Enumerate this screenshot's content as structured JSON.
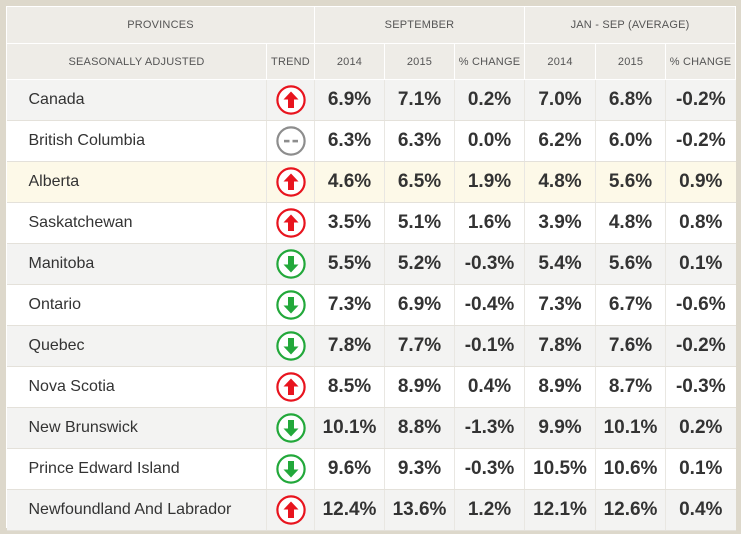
{
  "header": {
    "provinces": "PROVINCES",
    "seasonally_adjusted": "SEASONALLY ADJUSTED",
    "september": "SEPTEMBER",
    "average": "JAN - SEP (AVERAGE)",
    "trend": "TREND",
    "y2014": "2014",
    "y2015": "2015",
    "pct_change": "% CHANGE",
    "avg_2014": "2014",
    "avg_2015": "2015",
    "avg_pct_change": "% CHANGE"
  },
  "colors": {
    "up": "#e8141e",
    "down": "#22a83a",
    "flat": "#8d8d8d",
    "highlight_row": "#fdf9e8"
  },
  "chart_data": {
    "type": "table",
    "columns": [
      "Provinces",
      "Trend",
      "September 2014",
      "September 2015",
      "September % Change",
      "Jan - Sep (Average) 2014",
      "Jan - Sep (Average) 2015",
      "Jan - Sep (Average) % Change"
    ],
    "rows": [
      {
        "province": "Canada",
        "trend": "up",
        "sep_2014": "6.9%",
        "sep_2015": "7.1%",
        "sep_change": "0.2%",
        "avg_2014": "7.0%",
        "avg_2015": "6.8%",
        "avg_change": "-0.2%"
      },
      {
        "province": "British Columbia",
        "trend": "flat",
        "sep_2014": "6.3%",
        "sep_2015": "6.3%",
        "sep_change": "0.0%",
        "avg_2014": "6.2%",
        "avg_2015": "6.0%",
        "avg_change": "-0.2%"
      },
      {
        "province": "Alberta",
        "trend": "up",
        "highlight": true,
        "sep_2014": "4.6%",
        "sep_2015": "6.5%",
        "sep_change": "1.9%",
        "avg_2014": "4.8%",
        "avg_2015": "5.6%",
        "avg_change": "0.9%"
      },
      {
        "province": "Saskatchewan",
        "trend": "up",
        "sep_2014": "3.5%",
        "sep_2015": "5.1%",
        "sep_change": "1.6%",
        "avg_2014": "3.9%",
        "avg_2015": "4.8%",
        "avg_change": "0.8%"
      },
      {
        "province": "Manitoba",
        "trend": "down",
        "sep_2014": "5.5%",
        "sep_2015": "5.2%",
        "sep_change": "-0.3%",
        "avg_2014": "5.4%",
        "avg_2015": "5.6%",
        "avg_change": "0.1%"
      },
      {
        "province": "Ontario",
        "trend": "down",
        "sep_2014": "7.3%",
        "sep_2015": "6.9%",
        "sep_change": "-0.4%",
        "avg_2014": "7.3%",
        "avg_2015": "6.7%",
        "avg_change": "-0.6%"
      },
      {
        "province": "Quebec",
        "trend": "down",
        "sep_2014": "7.8%",
        "sep_2015": "7.7%",
        "sep_change": "-0.1%",
        "avg_2014": "7.8%",
        "avg_2015": "7.6%",
        "avg_change": "-0.2%"
      },
      {
        "province": "Nova Scotia",
        "trend": "up",
        "sep_2014": "8.5%",
        "sep_2015": "8.9%",
        "sep_change": "0.4%",
        "avg_2014": "8.9%",
        "avg_2015": "8.7%",
        "avg_change": "-0.3%"
      },
      {
        "province": "New Brunswick",
        "trend": "down",
        "sep_2014": "10.1%",
        "sep_2015": "8.8%",
        "sep_change": "-1.3%",
        "avg_2014": "9.9%",
        "avg_2015": "10.1%",
        "avg_change": "0.2%"
      },
      {
        "province": "Prince Edward Island",
        "trend": "down",
        "sep_2014": "9.6%",
        "sep_2015": "9.3%",
        "sep_change": "-0.3%",
        "avg_2014": "10.5%",
        "avg_2015": "10.6%",
        "avg_change": "0.1%"
      },
      {
        "province": "Newfoundland And Labrador",
        "trend": "up",
        "sep_2014": "12.4%",
        "sep_2015": "13.6%",
        "sep_change": "1.2%",
        "avg_2014": "12.1%",
        "avg_2015": "12.6%",
        "avg_change": "0.4%"
      }
    ]
  }
}
